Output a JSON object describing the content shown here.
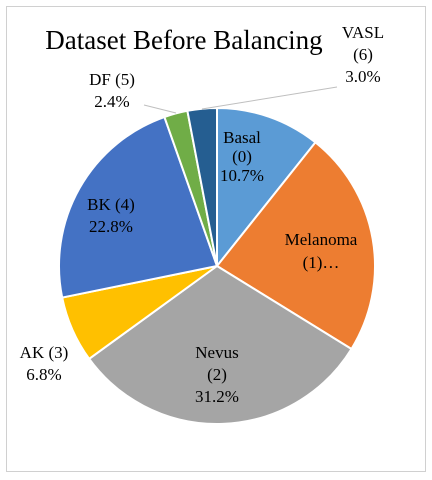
{
  "chart_data": {
    "type": "pie",
    "title": "Dataset Before Balancing",
    "legend": "none",
    "slices": [
      {
        "name": "Basal (0)",
        "value": 10.7,
        "value_label": "10.7%",
        "color": "#5B9BD5",
        "label_lines": [
          "Basal",
          "(0)",
          "10.7%"
        ]
      },
      {
        "name": "Melanoma (1)",
        "value": 23.1,
        "value_label": "",
        "color": "#ED7D31",
        "label_lines": [
          "Melanoma",
          "(1)…"
        ]
      },
      {
        "name": "Nevus (2)",
        "value": 31.2,
        "value_label": "31.2%",
        "color": "#A5A5A5",
        "label_lines": [
          "Nevus",
          "(2)",
          "31.2%"
        ]
      },
      {
        "name": "AK (3)",
        "value": 6.8,
        "value_label": "6.8%",
        "color": "#FFC000",
        "label_lines": [
          "AK (3)",
          "6.8%"
        ]
      },
      {
        "name": "BK (4)",
        "value": 22.8,
        "value_label": "22.8%",
        "color": "#4472C4",
        "label_lines": [
          "BK (4)",
          "22.8%"
        ]
      },
      {
        "name": "DF (5)",
        "value": 2.4,
        "value_label": "2.4%",
        "color": "#70AD47",
        "label_lines": [
          "DF (5)",
          "2.4%"
        ]
      },
      {
        "name": "VASL (6)",
        "value": 3.0,
        "value_label": "3.0%",
        "color": "#255E91",
        "label_lines": [
          "VASL",
          "(6)",
          "3.0%"
        ]
      }
    ]
  }
}
